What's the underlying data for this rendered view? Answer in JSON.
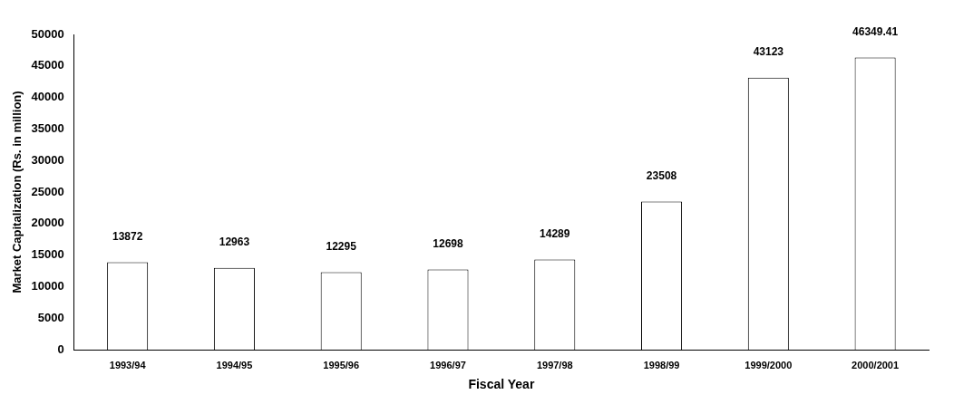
{
  "chart_data": {
    "type": "bar",
    "xlabel": "Fiscal Year",
    "ylabel": "Market Capitalization (Rs. in million)",
    "categories": [
      "1993/94",
      "1994/95",
      "1995/96",
      "1996/97",
      "1997/98",
      "1998/99",
      "1999/2000",
      "2000/2001"
    ],
    "values": [
      13872,
      12963,
      12295,
      12698,
      14289,
      23508,
      43123,
      46349.41
    ],
    "color": "#ffffff",
    "ylim": [
      0,
      50000
    ],
    "yticks": [
      0,
      5000,
      10000,
      15000,
      20000,
      25000,
      30000,
      35000,
      40000,
      45000,
      50000
    ],
    "data_labels": true,
    "grid": false,
    "legend": false
  }
}
